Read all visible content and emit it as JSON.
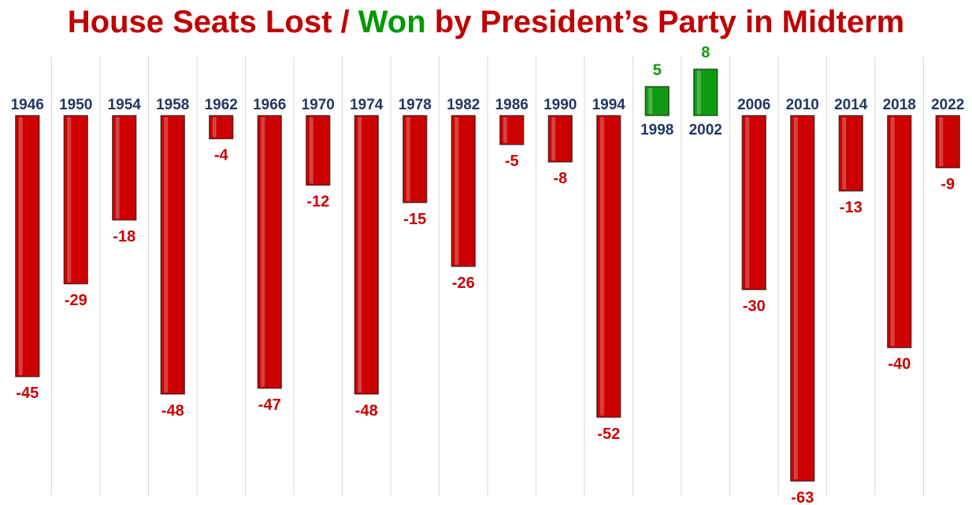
{
  "chart_data": {
    "type": "bar",
    "title_segments": [
      {
        "text": "House Seats Lost / ",
        "color": "#c00000"
      },
      {
        "text": "Won",
        "color": "#009900"
      },
      {
        "text": " by President’s Party in Midterm",
        "color": "#c00000"
      }
    ],
    "categories": [
      "1946",
      "1950",
      "1954",
      "1958",
      "1962",
      "1966",
      "1970",
      "1974",
      "1978",
      "1982",
      "1986",
      "1990",
      "1994",
      "1998",
      "2002",
      "2006",
      "2010",
      "2014",
      "2018",
      "2022"
    ],
    "values": [
      -45,
      -29,
      -18,
      -48,
      -4,
      -47,
      -12,
      -48,
      -15,
      -26,
      -5,
      -8,
      -52,
      5,
      8,
      -30,
      -63,
      -13,
      -40,
      -9
    ],
    "negative_color": "#cc0000",
    "positive_color": "#119911",
    "category_label_color": "#1f3864",
    "ylim": [
      -64,
      12
    ]
  }
}
